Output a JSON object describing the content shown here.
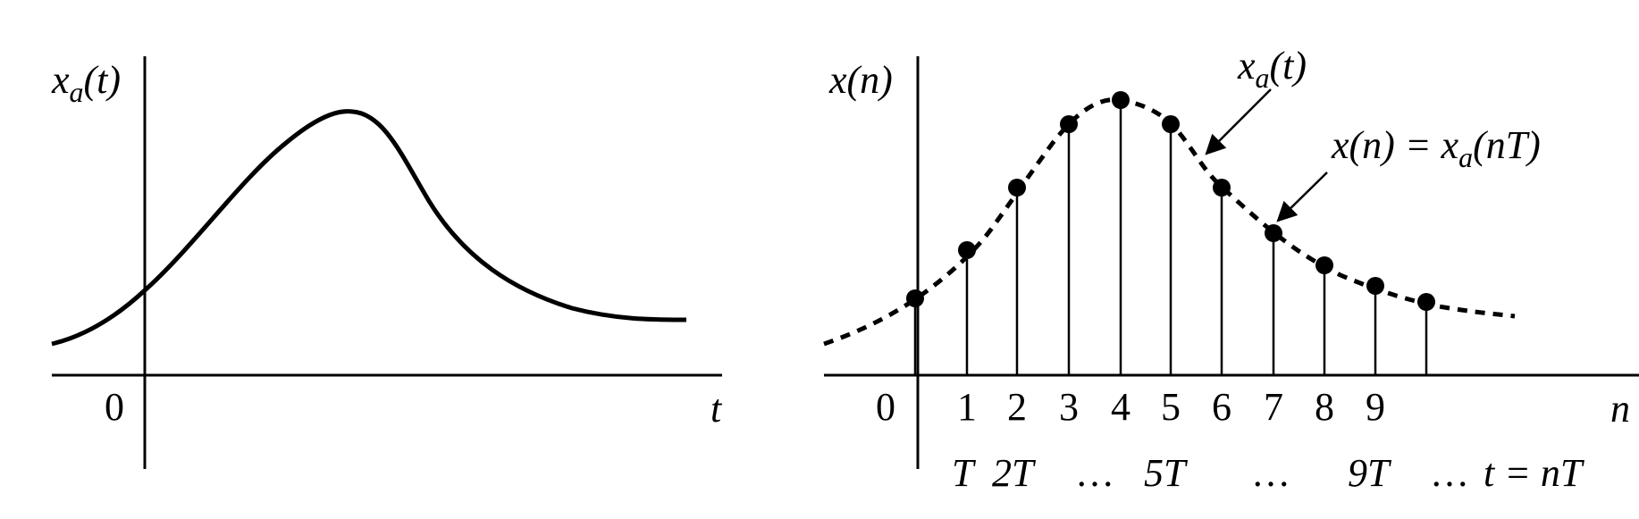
{
  "left_panel": {
    "y_label": "x",
    "y_label_sub": "a",
    "y_label_arg": "(t)",
    "x_label": "t",
    "origin_label": "0"
  },
  "right_panel": {
    "y_label": "x(n)",
    "x_label": "n",
    "origin_label": "0",
    "sample_indices": [
      "1",
      "2",
      "3",
      "4",
      "5",
      "6",
      "7",
      "8",
      "9"
    ],
    "time_labels": {
      "t1": "T",
      "t2": "2T",
      "dots1": "…",
      "t5": "5T",
      "dots2": "…",
      "t9": "9T",
      "dots3": "…",
      "tn": "t = nT"
    },
    "annotation_curve": {
      "text": "x",
      "sub": "a",
      "arg": "(t)"
    },
    "annotation_samples": {
      "lhs": "x(n) = x",
      "sub": "a",
      "arg": "(nT)"
    }
  }
}
